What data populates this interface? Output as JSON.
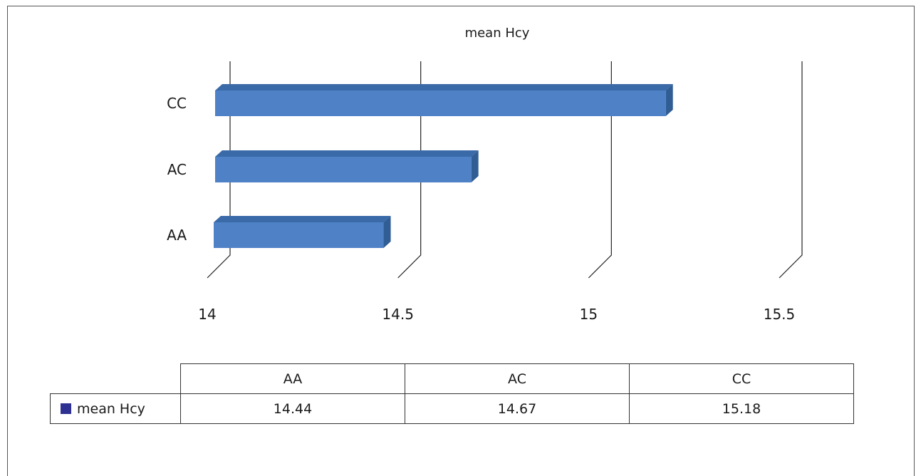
{
  "chart_data": {
    "type": "bar",
    "orientation": "horizontal",
    "style": "3d",
    "title": "mean Hcy",
    "categories": [
      "AA",
      "AC",
      "CC"
    ],
    "series": [
      {
        "name": "mean Hcy",
        "values": [
          14.44,
          14.67,
          15.18
        ]
      }
    ],
    "xlim": [
      14,
      15.5
    ],
    "x_ticks": [
      "14",
      "14.5",
      "15",
      "15.5"
    ],
    "grid": true,
    "legend": "data-table-below",
    "colors": {
      "bar_front": "#4f81c7",
      "bar_top": "#3a6aa8",
      "bar_side": "#2f5d94",
      "legend_key": "#2e3192"
    }
  },
  "table": {
    "header": [
      "AA",
      "AC",
      "CC"
    ],
    "rows": [
      {
        "label": "mean Hcy",
        "values": [
          "14.44",
          "14.67",
          "15.18"
        ]
      }
    ]
  }
}
